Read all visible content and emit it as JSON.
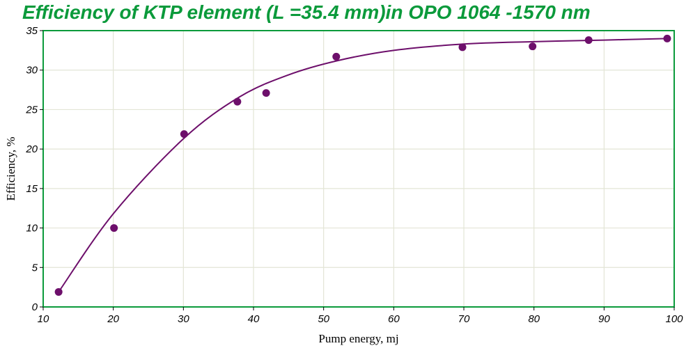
{
  "chart_data": {
    "type": "scatter",
    "title": "Efficiency of KTP element (L =35.4 mm)in OPO 1064 -1570 nm",
    "xlabel": "Pump energy, mj",
    "ylabel": "Efficiency, %",
    "xlim": [
      10,
      100
    ],
    "ylim": [
      0,
      35
    ],
    "xticks": [
      10,
      20,
      30,
      40,
      50,
      60,
      70,
      80,
      90,
      100
    ],
    "yticks": [
      0,
      5,
      10,
      15,
      20,
      25,
      30,
      35
    ],
    "grid": true,
    "series": [
      {
        "type": "scatter",
        "x": [
          12.2,
          20.1,
          30.1,
          37.7,
          41.8,
          51.8,
          69.8,
          79.8,
          87.8,
          99.0
        ],
        "y": [
          1.9,
          10.0,
          21.9,
          26.0,
          27.1,
          31.7,
          32.9,
          33.0,
          33.8,
          34.0
        ]
      },
      {
        "type": "line",
        "x": [
          12.2,
          20,
          30,
          38,
          45,
          52,
          60,
          70,
          80,
          90,
          99
        ],
        "y": [
          1.9,
          11.8,
          21.3,
          26.6,
          29.4,
          31.2,
          32.5,
          33.3,
          33.6,
          33.8,
          34.0
        ]
      }
    ],
    "colors": {
      "series": "#6d0f6b",
      "frame": "#0b9a3b",
      "grid": "#e3e5d6",
      "title": "#0b9a3b"
    }
  }
}
